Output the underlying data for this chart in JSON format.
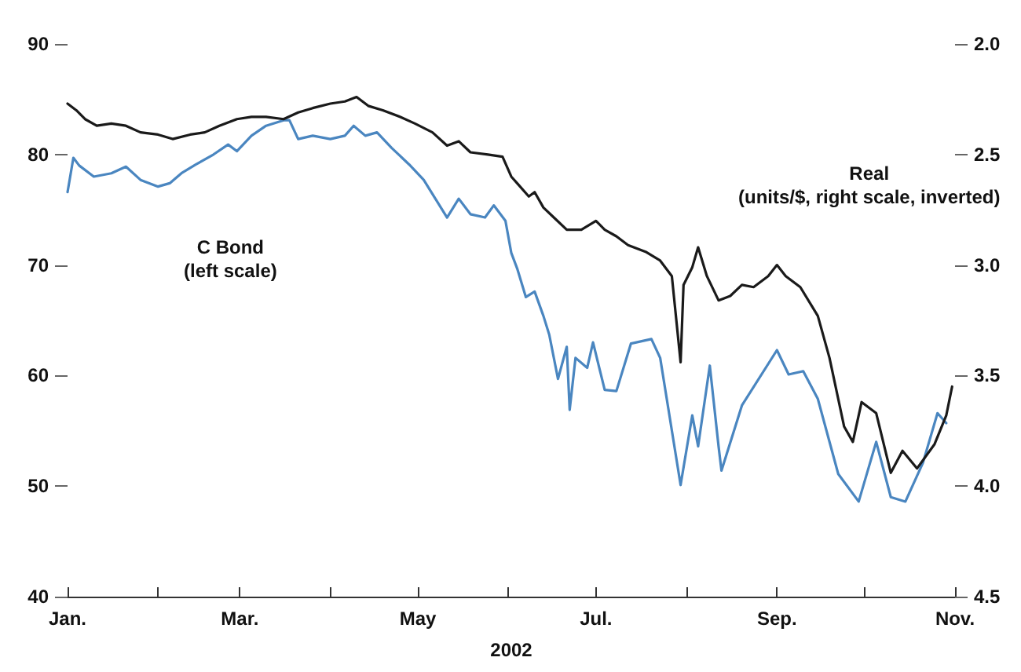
{
  "chart_data": {
    "type": "line",
    "xlabel": "2002",
    "annotations": [
      "C Bond\n(left scale)",
      "Real\n(units/$, right scale, inverted)"
    ],
    "xlim": [
      "2002-01-01",
      "2002-11-01"
    ],
    "xticks": [
      {
        "value": "2002-01-01",
        "label": "Jan."
      },
      {
        "value": "2002-02-01",
        "label": null
      },
      {
        "value": "2002-03-01",
        "label": "Mar."
      },
      {
        "value": "2002-04-01",
        "label": null
      },
      {
        "value": "2002-05-01",
        "label": "May"
      },
      {
        "value": "2002-06-01",
        "label": null
      },
      {
        "value": "2002-07-01",
        "label": "Jul."
      },
      {
        "value": "2002-08-01",
        "label": null
      },
      {
        "value": "2002-09-01",
        "label": "Sep."
      },
      {
        "value": "2002-10-01",
        "label": null
      },
      {
        "value": "2002-11-01",
        "label": "Nov."
      }
    ],
    "ylim": [
      40,
      90
    ],
    "yticks": [
      40,
      50,
      60,
      70,
      80,
      90
    ],
    "y2lim": [
      4.5,
      2.0
    ],
    "y2ticks": [
      4.5,
      {
        "value": 4,
        "label": "4.0"
      },
      3.5,
      {
        "value": 3,
        "label": "3.0"
      },
      2.5,
      {
        "value": 2,
        "label": "2.0"
      }
    ],
    "marker": "none",
    "line_style": "solid",
    "series": [
      {
        "color": "#4a86c0",
        "x": [
          "2002-01-01",
          "2002-01-03",
          "2002-01-05",
          "2002-01-10",
          "2002-01-16",
          "2002-01-21",
          "2002-01-26",
          "2002-02-01",
          "2002-02-05",
          "2002-02-09",
          "2002-02-14",
          "2002-02-20",
          "2002-02-25",
          "2002-02-28",
          "2002-03-05",
          "2002-03-10",
          "2002-03-16",
          "2002-03-18",
          "2002-03-21",
          "2002-03-26",
          "2002-04-01",
          "2002-04-06",
          "2002-04-09",
          "2002-04-13",
          "2002-04-17",
          "2002-04-22",
          "2002-04-28",
          "2002-05-03",
          "2002-05-07",
          "2002-05-11",
          "2002-05-15",
          "2002-05-19",
          "2002-05-24",
          "2002-05-27",
          "2002-05-31",
          "2002-06-02",
          "2002-06-04",
          "2002-06-07",
          "2002-06-10",
          "2002-06-13",
          "2002-06-15",
          "2002-06-18",
          "2002-06-21",
          "2002-06-22",
          "2002-06-24",
          "2002-06-28",
          "2002-06-30",
          "2002-07-04",
          "2002-07-08",
          "2002-07-13",
          "2002-07-20",
          "2002-07-23",
          "2002-07-30",
          "2002-08-03",
          "2002-08-05",
          "2002-08-09",
          "2002-08-12",
          "2002-08-13",
          "2002-08-20",
          "2002-09-01",
          "2002-09-05",
          "2002-09-10",
          "2002-09-15",
          "2002-09-22",
          "2002-09-29",
          "2002-10-05",
          "2002-10-10",
          "2002-10-15",
          "2002-10-21",
          "2002-10-26",
          "2002-10-29"
        ],
        "values": [
          76.6,
          79.7,
          79.0,
          78.0,
          78.3,
          78.9,
          77.7,
          77.1,
          77.4,
          78.3,
          79.1,
          80.0,
          80.9,
          80.3,
          81.7,
          82.6,
          83.1,
          83.1,
          81.4,
          81.7,
          81.4,
          81.7,
          82.6,
          81.7,
          82.0,
          80.6,
          79.1,
          77.7,
          76.0,
          74.3,
          76.0,
          74.6,
          74.3,
          75.4,
          74.0,
          71.1,
          69.7,
          67.1,
          67.6,
          65.4,
          63.7,
          59.7,
          62.6,
          56.9,
          61.6,
          60.7,
          63.0,
          58.7,
          58.6,
          62.9,
          63.3,
          61.6,
          50.1,
          56.4,
          53.6,
          60.9,
          53.6,
          51.4,
          57.3,
          62.3,
          60.1,
          60.4,
          57.9,
          51.1,
          48.6,
          54.0,
          49.0,
          48.6,
          52.1,
          56.6,
          55.7
        ]
      },
      {
        "color": "#1a1a1a",
        "axis": "y2",
        "x": [
          "2002-01-01",
          "2002-01-04",
          "2002-01-07",
          "2002-01-11",
          "2002-01-16",
          "2002-01-21",
          "2002-01-26",
          "2002-02-01",
          "2002-02-06",
          "2002-02-12",
          "2002-02-17",
          "2002-02-22",
          "2002-02-28",
          "2002-03-05",
          "2002-03-10",
          "2002-03-16",
          "2002-03-21",
          "2002-03-26",
          "2002-04-01",
          "2002-04-06",
          "2002-04-10",
          "2002-04-14",
          "2002-04-19",
          "2002-04-25",
          "2002-04-30",
          "2002-05-06",
          "2002-05-11",
          "2002-05-15",
          "2002-05-19",
          "2002-05-25",
          "2002-05-30",
          "2002-06-02",
          "2002-06-04",
          "2002-06-08",
          "2002-06-10",
          "2002-06-13",
          "2002-06-17",
          "2002-06-21",
          "2002-06-26",
          "2002-07-01",
          "2002-07-04",
          "2002-07-08",
          "2002-07-12",
          "2002-07-18",
          "2002-07-23",
          "2002-07-27",
          "2002-07-30",
          "2002-07-31",
          "2002-08-03",
          "2002-08-05",
          "2002-08-08",
          "2002-08-12",
          "2002-08-16",
          "2002-08-20",
          "2002-08-24",
          "2002-08-29",
          "2002-09-01",
          "2002-09-04",
          "2002-09-09",
          "2002-09-15",
          "2002-09-19",
          "2002-09-24",
          "2002-09-27",
          "2002-09-30",
          "2002-10-05",
          "2002-10-10",
          "2002-10-14",
          "2002-10-19",
          "2002-10-25",
          "2002-10-29",
          "2002-10-31"
        ],
        "values": [
          2.27,
          2.3,
          2.34,
          2.37,
          2.36,
          2.37,
          2.4,
          2.41,
          2.43,
          2.41,
          2.4,
          2.37,
          2.34,
          2.33,
          2.33,
          2.34,
          2.31,
          2.29,
          2.27,
          2.26,
          2.24,
          2.28,
          2.3,
          2.33,
          2.36,
          2.4,
          2.46,
          2.44,
          2.49,
          2.5,
          2.51,
          2.6,
          2.63,
          2.69,
          2.67,
          2.74,
          2.79,
          2.84,
          2.84,
          2.8,
          2.84,
          2.87,
          2.91,
          2.94,
          2.98,
          3.05,
          3.44,
          3.09,
          3.01,
          2.92,
          3.05,
          3.16,
          3.14,
          3.09,
          3.1,
          3.05,
          3.0,
          3.05,
          3.1,
          3.23,
          3.42,
          3.73,
          3.8,
          3.62,
          3.67,
          3.94,
          3.84,
          3.92,
          3.81,
          3.68,
          3.55
        ]
      }
    ]
  }
}
